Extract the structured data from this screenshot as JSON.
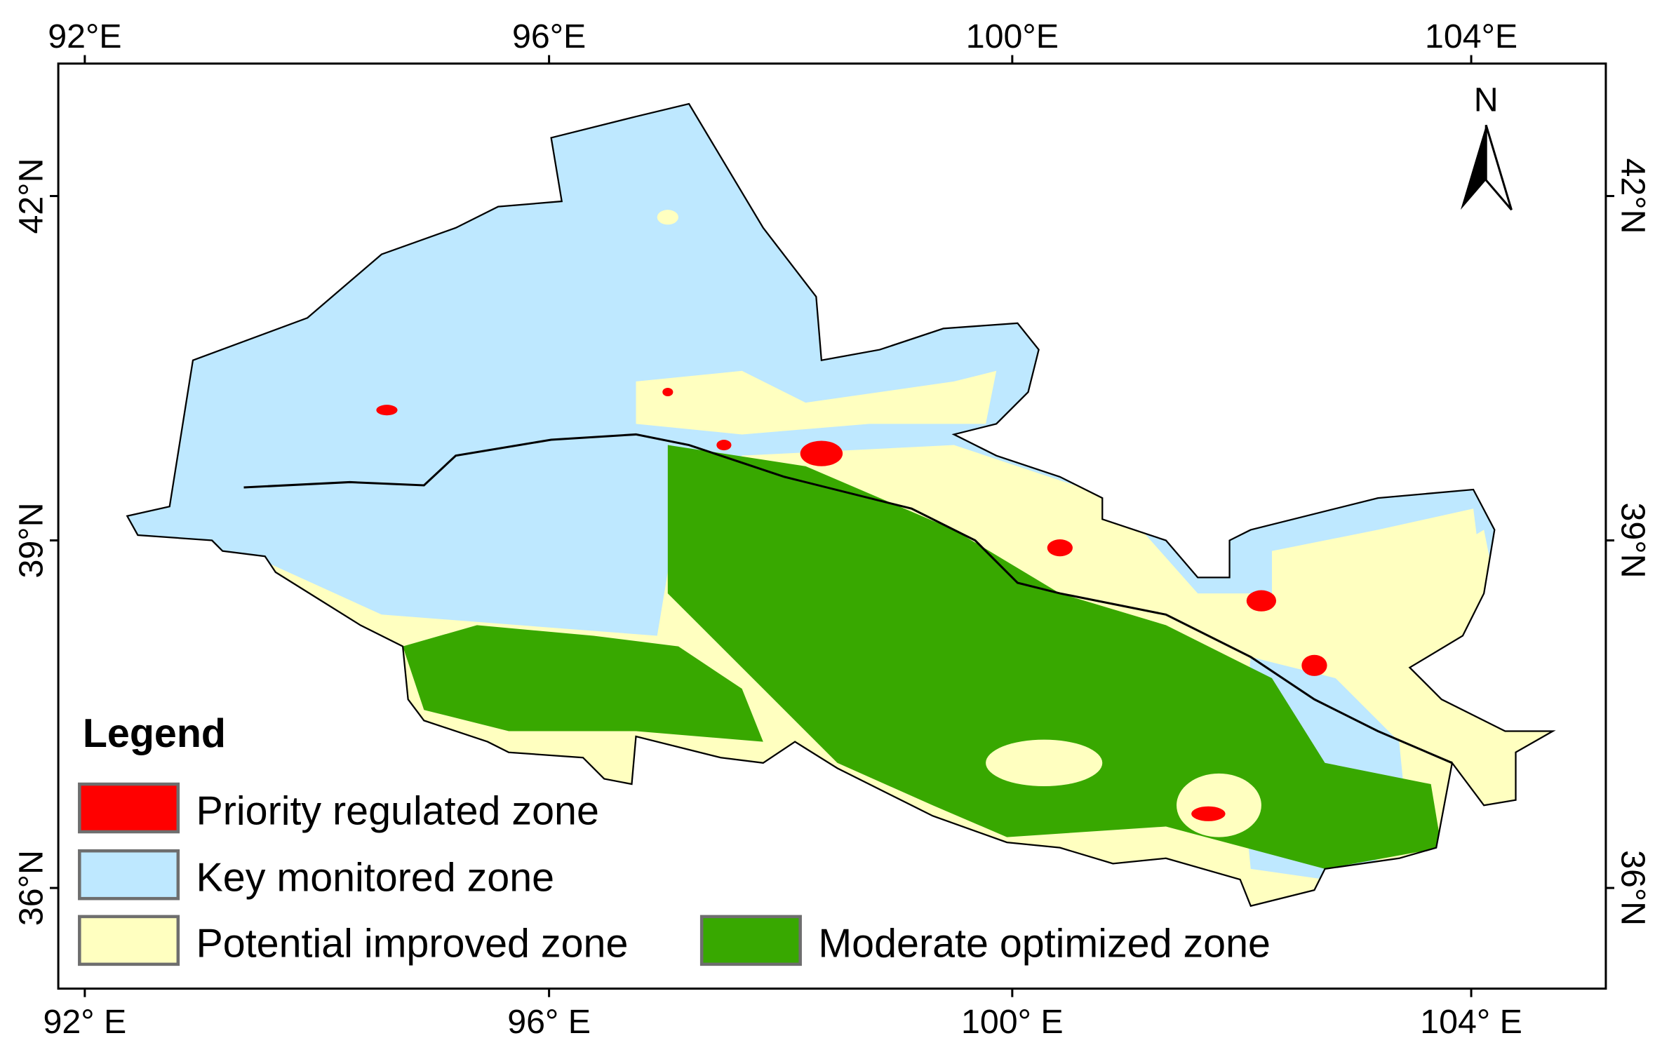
{
  "map": {
    "top_labels": [
      "92°E",
      "96°E",
      "100°E",
      "104°E"
    ],
    "bottom_labels": [
      "92° E",
      "96° E",
      "100° E",
      "104° E"
    ],
    "left_labels": [
      "42°N",
      "39°N",
      "36°N"
    ],
    "right_labels": [
      "42°N",
      "39°N",
      "36°N"
    ],
    "north": "N",
    "legend": {
      "title": "Legend",
      "items": [
        {
          "label": "Priority regulated zone",
          "color": "#ff0000"
        },
        {
          "label": "Key monitored zone",
          "color": "#bee8ff"
        },
        {
          "label": "Potential improved zone",
          "color": "#ffffc0"
        },
        {
          "label": "Moderate optimized zone",
          "color": "#38a800"
        }
      ]
    }
  }
}
